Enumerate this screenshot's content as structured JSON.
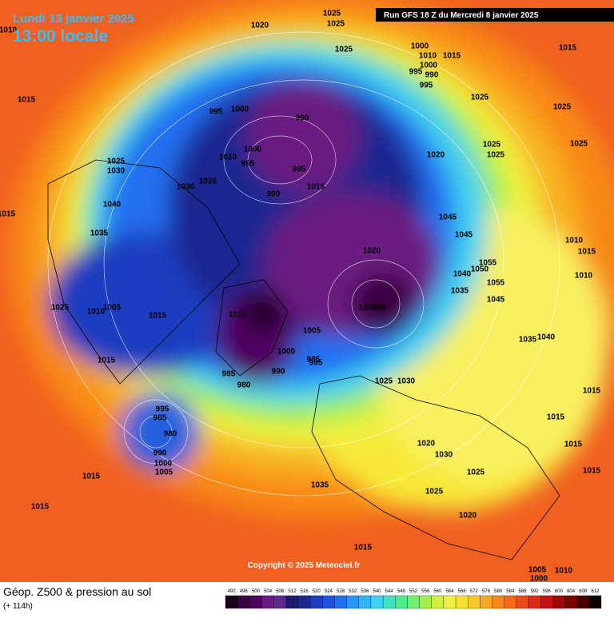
{
  "header": {
    "date": "Lundi 13 janvier 2025",
    "time": "13:00 locale",
    "run": "Run GFS 18 Z du Mercredi 8 janvier 2025"
  },
  "copyright": "Copyright © 2025 Meteociel.fr",
  "footer": {
    "title": "Géop. Z500 & pression au sol",
    "lead": "(+ 114h)"
  },
  "scale": {
    "labels": [
      "492",
      "496",
      "500",
      "504",
      "508",
      "512",
      "516",
      "520",
      "524",
      "528",
      "532",
      "536",
      "540",
      "544",
      "548",
      "552",
      "556",
      "560",
      "564",
      "568",
      "572",
      "576",
      "580",
      "584",
      "588",
      "592",
      "596",
      "600",
      "604",
      "608",
      "612"
    ],
    "colors": [
      "#1a001a",
      "#3a0040",
      "#500060",
      "#6a1a80",
      "#5a2a90",
      "#1e1a6e",
      "#1a2890",
      "#1e3cc0",
      "#2050e0",
      "#2070f0",
      "#2896f8",
      "#30b4f8",
      "#40d0f0",
      "#40e0c0",
      "#50e890",
      "#70f070",
      "#a0f050",
      "#d0f040",
      "#f0f040",
      "#f8e030",
      "#f8c828",
      "#f8a820",
      "#f88818",
      "#f86818",
      "#f04818",
      "#e02818",
      "#c81010",
      "#a00808",
      "#780404",
      "#480000",
      "#100000"
    ]
  },
  "map_labels": [
    "1010",
    "1015",
    "1015",
    "1020",
    "1025",
    "1025",
    "1025",
    "1000",
    "1010",
    "1015",
    "1000",
    "995",
    "990",
    "995",
    "1015",
    "1025",
    "1025",
    "1025",
    "1025",
    "1025",
    "990",
    "995",
    "1000",
    "1000",
    "1010",
    "995",
    "985",
    "990",
    "1015",
    "1020",
    "1030",
    "1025",
    "1030",
    "1020",
    "1045",
    "1045",
    "1010",
    "1015",
    "1020",
    "1055",
    "1040",
    "1050",
    "1055",
    "1010",
    "1035",
    "1045",
    "1035",
    "1040",
    "1025",
    "1010",
    "1005",
    "1015",
    "1015",
    "1000",
    "990",
    "1005",
    "1035",
    "1040",
    "995",
    "1000",
    "985",
    "985",
    "990",
    "980",
    "1025",
    "1030",
    "1015",
    "1015",
    "995",
    "985",
    "980",
    "990",
    "1000",
    "1005",
    "1015",
    "1015",
    "1020",
    "1030",
    "1035",
    "1025",
    "1025",
    "1020",
    "1015",
    "1015",
    "1015",
    "1015",
    "1010",
    "1005",
    "1000"
  ]
}
